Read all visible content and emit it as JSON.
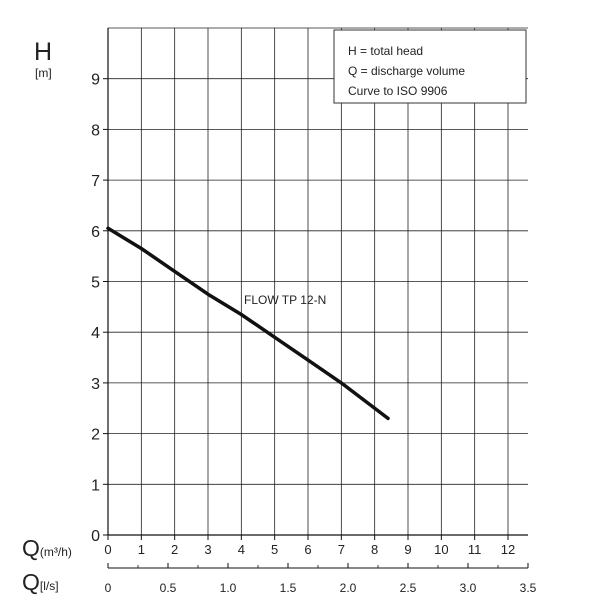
{
  "chart_data": {
    "type": "line",
    "title": "",
    "ylabel": "H",
    "ylabel_unit": "[m]",
    "xlabel_q_m3h_main": "Q",
    "xlabel_q_m3h_sub": "(m³/h)",
    "xlabel_q_ls_main": "Q",
    "xlabel_q_ls_sub": "[l/s]",
    "xlim_m3h": [
      0,
      12.6
    ],
    "ylim": [
      0,
      10
    ],
    "x_ticks_m3h": [
      "0",
      "1",
      "2",
      "3",
      "4",
      "5",
      "6",
      "7",
      "8",
      "9",
      "10",
      "11",
      "12"
    ],
    "x_ticks_ls": [
      "0",
      "0.5",
      "1.0",
      "1.5",
      "2.0",
      "2.5",
      "3.0",
      "3.5"
    ],
    "y_ticks": [
      "0",
      "1",
      "2",
      "3",
      "4",
      "5",
      "6",
      "7",
      "8",
      "9"
    ],
    "grid": true,
    "legend_position": "top-right",
    "legend_lines": [
      "H = total head",
      "Q = discharge volume",
      "Curve to ISO 9906"
    ],
    "series": [
      {
        "name": "FLOW TP 12-N",
        "x": [
          0,
          1,
          2,
          3,
          4,
          5,
          6,
          7,
          8.4
        ],
        "y": [
          6.05,
          5.65,
          5.2,
          4.75,
          4.35,
          3.9,
          3.45,
          3.0,
          2.3
        ]
      }
    ]
  }
}
